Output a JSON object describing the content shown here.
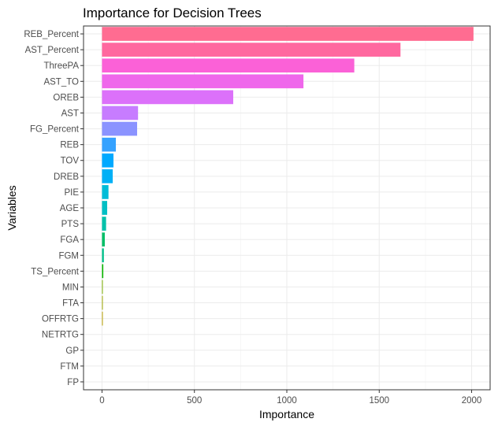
{
  "chart_data": {
    "type": "bar",
    "orientation": "horizontal",
    "title": "Importance for Decision Trees",
    "xlabel": "Importance",
    "ylabel": "Variables",
    "xlim": [
      -100,
      2100
    ],
    "xticks": [
      0,
      500,
      1000,
      1500,
      2000
    ],
    "grid": true,
    "legend": "none",
    "categories": [
      "REB_Percent",
      "AST_Percent",
      "ThreePA",
      "AST_TO",
      "OREB",
      "AST",
      "FG_Percent",
      "REB",
      "TOV",
      "DREB",
      "PIE",
      "AGE",
      "PTS",
      "FGA",
      "FGM",
      "TS_Percent",
      "MIN",
      "FTA",
      "OFFRTG",
      "NETRTG",
      "GP",
      "FTM",
      "FP"
    ],
    "values": [
      2010,
      1615,
      1365,
      1090,
      710,
      195,
      190,
      75,
      62,
      58,
      35,
      28,
      22,
      15,
      10,
      7,
      4,
      3,
      2,
      0,
      0,
      0,
      0
    ],
    "colors": [
      "#FF6C91",
      "#FF689F",
      "#FB61D7",
      "#EF67EB",
      "#DC71FA",
      "#C77CFF",
      "#8B93FF",
      "#35A2FF",
      "#00A9FF",
      "#00B0F6",
      "#00BCD8",
      "#00BFC4",
      "#00C1AA",
      "#00BE67",
      "#00C08B",
      "#0CB702",
      "#7CAE00",
      "#9EA700",
      "#B79F00",
      "#C99800",
      "#D89000",
      "#E58700",
      "#F8766D"
    ]
  }
}
